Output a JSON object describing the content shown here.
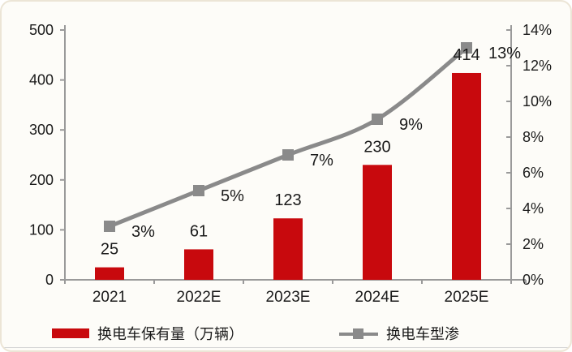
{
  "chart_data": {
    "type": "bar",
    "combo_types": [
      "bar",
      "line"
    ],
    "title": "",
    "categories": [
      "2021",
      "2022E",
      "2023E",
      "2024E",
      "2025E"
    ],
    "series": [
      {
        "name": "换电车保有量（万辆）",
        "type": "bar",
        "axis": "left",
        "color": "#c8090d",
        "values": [
          25,
          61,
          123,
          230,
          414
        ],
        "data_labels": [
          "25",
          "61",
          "123",
          "230",
          "414"
        ]
      },
      {
        "name": "换电车型渗",
        "type": "line",
        "axis": "right",
        "color": "#8a8a8a",
        "marker": "square",
        "values": [
          3,
          5,
          7,
          9,
          13
        ],
        "data_labels": [
          "3%",
          "5%",
          "7%",
          "9%",
          "13%"
        ]
      }
    ],
    "left_axis": {
      "min": 0,
      "max": 500,
      "ticks": [
        "0",
        "100",
        "200",
        "300",
        "400",
        "500"
      ]
    },
    "right_axis": {
      "min": 0,
      "max": 14,
      "ticks": [
        "0%",
        "2%",
        "4%",
        "6%",
        "8%",
        "10%",
        "12%",
        "14%"
      ]
    },
    "x_axis": {
      "ticks": [
        "2021",
        "2022E",
        "2023E",
        "2024E",
        "2025E"
      ]
    },
    "grid": false,
    "legend_position": "bottom"
  },
  "legend": {
    "items": [
      {
        "label": "换电车保有量（万辆）",
        "swatch": "bar-swatch"
      },
      {
        "label": "换电车型渗",
        "swatch": "line-square-swatch"
      }
    ]
  },
  "colors": {
    "bar": "#c8090d",
    "line": "#8a8a8a",
    "axis": "#9a9a9a",
    "text": "#1a1a1a",
    "card_bg": "#fdfcf8",
    "card_border": "#ece5d6",
    "divider": "#d6d6d6"
  }
}
